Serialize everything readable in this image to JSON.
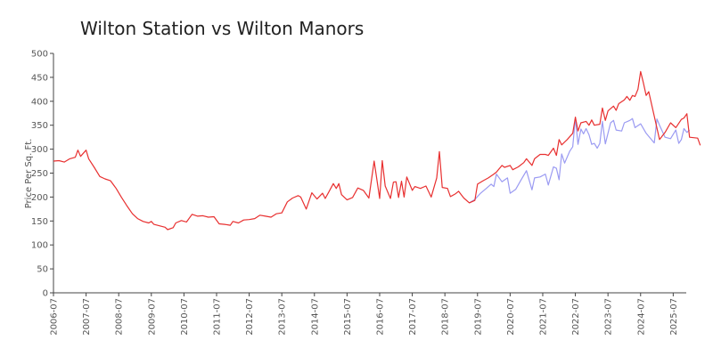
{
  "chart_data": {
    "type": "line",
    "title": "Wilton Station vs Wilton Manors",
    "xlabel": "",
    "ylabel": "Price Per Sq. Ft.",
    "ylim": [
      0,
      500
    ],
    "yticks": [
      0,
      50,
      100,
      150,
      200,
      250,
      300,
      350,
      400,
      450,
      500
    ],
    "xlim": [
      2006.5,
      2025.9
    ],
    "xticks": [
      "2006-07",
      "2007-07",
      "2008-07",
      "2009-07",
      "2010-07",
      "2011-07",
      "2012-07",
      "2013-07",
      "2014-07",
      "2015-07",
      "2016-07",
      "2017-07",
      "2018-07",
      "2019-07",
      "2020-07",
      "2021-07",
      "2022-07",
      "2023-07",
      "2024-07",
      "2025-07"
    ],
    "grid": false,
    "series": [
      {
        "name": "Wilton Station",
        "color": "#e83030",
        "points": [
          [
            2006.5,
            275
          ],
          [
            2006.67,
            276
          ],
          [
            2006.83,
            273
          ],
          [
            2007.0,
            280
          ],
          [
            2007.17,
            283
          ],
          [
            2007.25,
            298
          ],
          [
            2007.33,
            285
          ],
          [
            2007.5,
            298
          ],
          [
            2007.58,
            280
          ],
          [
            2007.75,
            262
          ],
          [
            2007.92,
            243
          ],
          [
            2008.08,
            238
          ],
          [
            2008.25,
            234
          ],
          [
            2008.42,
            218
          ],
          [
            2008.58,
            200
          ],
          [
            2008.75,
            182
          ],
          [
            2008.92,
            165
          ],
          [
            2009.08,
            155
          ],
          [
            2009.25,
            149
          ],
          [
            2009.42,
            146
          ],
          [
            2009.5,
            149
          ],
          [
            2009.58,
            143
          ],
          [
            2009.75,
            140
          ],
          [
            2009.92,
            137
          ],
          [
            2010.0,
            132
          ],
          [
            2010.17,
            136
          ],
          [
            2010.25,
            146
          ],
          [
            2010.42,
            151
          ],
          [
            2010.58,
            148
          ],
          [
            2010.75,
            164
          ],
          [
            2010.92,
            160
          ],
          [
            2011.08,
            161
          ],
          [
            2011.25,
            158
          ],
          [
            2011.42,
            159
          ],
          [
            2011.58,
            144
          ],
          [
            2011.75,
            143
          ],
          [
            2011.92,
            141
          ],
          [
            2012.0,
            149
          ],
          [
            2012.17,
            146
          ],
          [
            2012.33,
            152
          ],
          [
            2012.5,
            153
          ],
          [
            2012.67,
            155
          ],
          [
            2012.83,
            162
          ],
          [
            2013.0,
            160
          ],
          [
            2013.17,
            158
          ],
          [
            2013.33,
            165
          ],
          [
            2013.5,
            167
          ],
          [
            2013.67,
            190
          ],
          [
            2013.83,
            198
          ],
          [
            2014.0,
            203
          ],
          [
            2014.08,
            200
          ],
          [
            2014.25,
            175
          ],
          [
            2014.42,
            209
          ],
          [
            2014.58,
            196
          ],
          [
            2014.75,
            208
          ],
          [
            2014.83,
            197
          ],
          [
            2014.92,
            208
          ],
          [
            2015.08,
            228
          ],
          [
            2015.17,
            218
          ],
          [
            2015.25,
            228
          ],
          [
            2015.33,
            205
          ],
          [
            2015.5,
            194
          ],
          [
            2015.67,
            199
          ],
          [
            2015.83,
            219
          ],
          [
            2016.0,
            214
          ],
          [
            2016.17,
            198
          ],
          [
            2016.33,
            275
          ],
          [
            2016.5,
            197
          ],
          [
            2016.58,
            276
          ],
          [
            2016.67,
            223
          ],
          [
            2016.83,
            197
          ],
          [
            2016.92,
            231
          ],
          [
            2017.0,
            232
          ],
          [
            2017.08,
            199
          ],
          [
            2017.17,
            233
          ],
          [
            2017.25,
            200
          ],
          [
            2017.33,
            242
          ],
          [
            2017.5,
            214
          ],
          [
            2017.58,
            222
          ],
          [
            2017.75,
            218
          ],
          [
            2017.92,
            223
          ],
          [
            2018.08,
            200
          ],
          [
            2018.25,
            240
          ],
          [
            2018.33,
            295
          ],
          [
            2018.42,
            220
          ],
          [
            2018.58,
            218
          ],
          [
            2018.67,
            201
          ],
          [
            2018.83,
            207
          ],
          [
            2018.92,
            212
          ],
          [
            2019.08,
            198
          ],
          [
            2019.25,
            188
          ],
          [
            2019.42,
            193
          ],
          [
            2019.5,
            227
          ],
          [
            2019.67,
            234
          ],
          [
            2019.83,
            240
          ],
          [
            2020.0,
            248
          ],
          [
            2020.08,
            252
          ],
          [
            2020.25,
            266
          ],
          [
            2020.33,
            262
          ],
          [
            2020.5,
            266
          ],
          [
            2020.58,
            257
          ],
          [
            2020.75,
            263
          ],
          [
            2020.92,
            272
          ],
          [
            2021.0,
            280
          ],
          [
            2021.17,
            266
          ],
          [
            2021.25,
            280
          ],
          [
            2021.42,
            289
          ],
          [
            2021.58,
            289
          ],
          [
            2021.67,
            287
          ],
          [
            2021.83,
            302
          ],
          [
            2021.92,
            287
          ],
          [
            2022.0,
            320
          ],
          [
            2022.08,
            309
          ],
          [
            2022.25,
            320
          ],
          [
            2022.42,
            333
          ],
          [
            2022.5,
            367
          ],
          [
            2022.58,
            338
          ],
          [
            2022.67,
            355
          ],
          [
            2022.83,
            358
          ],
          [
            2022.92,
            350
          ],
          [
            2023.0,
            361
          ],
          [
            2023.08,
            350
          ],
          [
            2023.25,
            352
          ],
          [
            2023.33,
            386
          ],
          [
            2023.42,
            360
          ],
          [
            2023.5,
            380
          ],
          [
            2023.67,
            390
          ],
          [
            2023.75,
            381
          ],
          [
            2023.83,
            395
          ],
          [
            2024.0,
            403
          ],
          [
            2024.08,
            410
          ],
          [
            2024.17,
            402
          ],
          [
            2024.25,
            412
          ],
          [
            2024.33,
            410
          ],
          [
            2024.42,
            425
          ],
          [
            2024.5,
            462
          ],
          [
            2024.58,
            440
          ],
          [
            2024.67,
            412
          ],
          [
            2024.75,
            420
          ],
          [
            2025.08,
            320
          ],
          [
            2025.25,
            335
          ],
          [
            2025.42,
            355
          ],
          [
            2025.58,
            345
          ],
          [
            2025.75,
            362
          ],
          [
            2025.83,
            365
          ],
          [
            2025.92,
            374
          ],
          [
            2026.0,
            325
          ],
          [
            2026.25,
            323
          ],
          [
            2026.33,
            308
          ]
        ]
      },
      {
        "name": "Wilton Manors",
        "color": "#9b9bf2",
        "points": [
          [
            2019.25,
            188
          ],
          [
            2019.42,
            195
          ],
          [
            2019.58,
            207
          ],
          [
            2019.75,
            217
          ],
          [
            2019.92,
            227
          ],
          [
            2020.0,
            222
          ],
          [
            2020.08,
            248
          ],
          [
            2020.25,
            232
          ],
          [
            2020.42,
            240
          ],
          [
            2020.5,
            208
          ],
          [
            2020.67,
            216
          ],
          [
            2020.83,
            235
          ],
          [
            2021.0,
            255
          ],
          [
            2021.17,
            215
          ],
          [
            2021.25,
            240
          ],
          [
            2021.42,
            242
          ],
          [
            2021.58,
            248
          ],
          [
            2021.67,
            225
          ],
          [
            2021.83,
            263
          ],
          [
            2021.92,
            260
          ],
          [
            2022.0,
            236
          ],
          [
            2022.08,
            290
          ],
          [
            2022.17,
            271
          ],
          [
            2022.33,
            296
          ],
          [
            2022.42,
            305
          ],
          [
            2022.5,
            365
          ],
          [
            2022.58,
            310
          ],
          [
            2022.67,
            342
          ],
          [
            2022.75,
            332
          ],
          [
            2022.83,
            343
          ],
          [
            2022.92,
            330
          ],
          [
            2023.0,
            310
          ],
          [
            2023.08,
            312
          ],
          [
            2023.17,
            302
          ],
          [
            2023.25,
            312
          ],
          [
            2023.33,
            358
          ],
          [
            2023.42,
            311
          ],
          [
            2023.58,
            355
          ],
          [
            2023.67,
            360
          ],
          [
            2023.75,
            340
          ],
          [
            2023.92,
            338
          ],
          [
            2024.0,
            355
          ],
          [
            2024.17,
            360
          ],
          [
            2024.25,
            364
          ],
          [
            2024.33,
            345
          ],
          [
            2024.5,
            353
          ],
          [
            2024.67,
            333
          ],
          [
            2024.92,
            313
          ],
          [
            2025.0,
            363
          ],
          [
            2025.08,
            350
          ],
          [
            2025.25,
            325
          ],
          [
            2025.42,
            322
          ],
          [
            2025.58,
            340
          ],
          [
            2025.67,
            312
          ],
          [
            2025.75,
            320
          ],
          [
            2025.83,
            343
          ],
          [
            2025.92,
            335
          ],
          [
            2026.0,
            340
          ]
        ]
      }
    ]
  }
}
